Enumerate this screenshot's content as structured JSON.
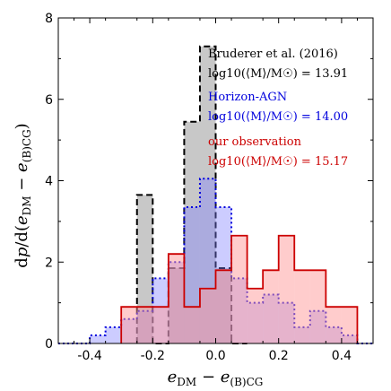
{
  "chart_data": {
    "type": "histogram",
    "xlabel": "e_DM − e_(B)CG",
    "ylabel": "dp/d(e_DM − e_(B)CG)",
    "xlim": [
      -0.5,
      0.5
    ],
    "ylim": [
      0,
      8
    ],
    "xticks": [
      -0.4,
      -0.2,
      0.0,
      0.2,
      0.4
    ],
    "xtick_labels": [
      "-0.4",
      "-0.2",
      "0.0",
      "0.2",
      "0.4"
    ],
    "yticks": [
      0,
      2,
      4,
      6,
      8
    ],
    "ytick_labels": [
      "0",
      "2",
      "4",
      "6",
      "8"
    ],
    "legend_position": "top-right",
    "series": [
      {
        "name": "Bruderer et al. (2016)",
        "label": "log10(⟨M⟩/M☉) = 13.91",
        "color": "#000000",
        "fill": "#9a9a9a",
        "fill_opacity": 0.55,
        "linestyle": "dashed",
        "bins": [
          {
            "x0": -0.25,
            "x1": -0.2,
            "y": 3.65
          },
          {
            "x0": -0.2,
            "x1": -0.15,
            "y": 0.0
          },
          {
            "x0": -0.15,
            "x1": -0.1,
            "y": 1.85
          },
          {
            "x0": -0.1,
            "x1": -0.05,
            "y": 5.45
          },
          {
            "x0": -0.05,
            "x1": 0.0,
            "y": 7.3
          },
          {
            "x0": 0.0,
            "x1": 0.05,
            "y": 1.85
          },
          {
            "x0": 0.05,
            "x1": 0.1,
            "y": 0.0
          }
        ]
      },
      {
        "name": "Horizon-AGN",
        "label": "log10(⟨M⟩/M☉) = 14.00",
        "color": "#0000dd",
        "fill": "#8080ff",
        "fill_opacity": 0.4,
        "linestyle": "dotted",
        "bins": [
          {
            "x0": -0.5,
            "x1": -0.4,
            "y": 0.0
          },
          {
            "x0": -0.4,
            "x1": -0.35,
            "y": 0.2
          },
          {
            "x0": -0.35,
            "x1": -0.3,
            "y": 0.4
          },
          {
            "x0": -0.3,
            "x1": -0.25,
            "y": 0.6
          },
          {
            "x0": -0.25,
            "x1": -0.2,
            "y": 0.8
          },
          {
            "x0": -0.2,
            "x1": -0.15,
            "y": 1.6
          },
          {
            "x0": -0.15,
            "x1": -0.1,
            "y": 2.0
          },
          {
            "x0": -0.1,
            "x1": -0.05,
            "y": 3.35
          },
          {
            "x0": -0.05,
            "x1": 0.0,
            "y": 4.05
          },
          {
            "x0": 0.0,
            "x1": 0.05,
            "y": 3.35
          },
          {
            "x0": 0.05,
            "x1": 0.1,
            "y": 1.6
          },
          {
            "x0": 0.1,
            "x1": 0.15,
            "y": 1.0
          },
          {
            "x0": 0.15,
            "x1": 0.2,
            "y": 1.2
          },
          {
            "x0": 0.2,
            "x1": 0.25,
            "y": 1.0
          },
          {
            "x0": 0.25,
            "x1": 0.3,
            "y": 0.4
          },
          {
            "x0": 0.3,
            "x1": 0.35,
            "y": 0.8
          },
          {
            "x0": 0.35,
            "x1": 0.4,
            "y": 0.4
          },
          {
            "x0": 0.4,
            "x1": 0.45,
            "y": 0.2
          },
          {
            "x0": 0.45,
            "x1": 0.5,
            "y": 0.0
          }
        ]
      },
      {
        "name": "our observation",
        "label": "log10(⟨M⟩/M☉) = 15.17",
        "color": "#cc0000",
        "fill": "#ff9a9a",
        "fill_opacity": 0.5,
        "linestyle": "solid",
        "bins": [
          {
            "x0": -0.3,
            "x1": -0.25,
            "y": 0.9
          },
          {
            "x0": -0.25,
            "x1": -0.2,
            "y": 0.9
          },
          {
            "x0": -0.2,
            "x1": -0.15,
            "y": 0.9
          },
          {
            "x0": -0.15,
            "x1": -0.1,
            "y": 2.2
          },
          {
            "x0": -0.1,
            "x1": -0.05,
            "y": 0.9
          },
          {
            "x0": -0.05,
            "x1": 0.0,
            "y": 1.35
          },
          {
            "x0": 0.0,
            "x1": 0.05,
            "y": 1.8
          },
          {
            "x0": 0.05,
            "x1": 0.1,
            "y": 2.65
          },
          {
            "x0": 0.1,
            "x1": 0.15,
            "y": 1.35
          },
          {
            "x0": 0.15,
            "x1": 0.2,
            "y": 1.8
          },
          {
            "x0": 0.2,
            "x1": 0.25,
            "y": 2.65
          },
          {
            "x0": 0.25,
            "x1": 0.3,
            "y": 1.8
          },
          {
            "x0": 0.3,
            "x1": 0.35,
            "y": 1.8
          },
          {
            "x0": 0.35,
            "x1": 0.4,
            "y": 0.9
          },
          {
            "x0": 0.4,
            "x1": 0.45,
            "y": 0.9
          }
        ]
      }
    ]
  }
}
